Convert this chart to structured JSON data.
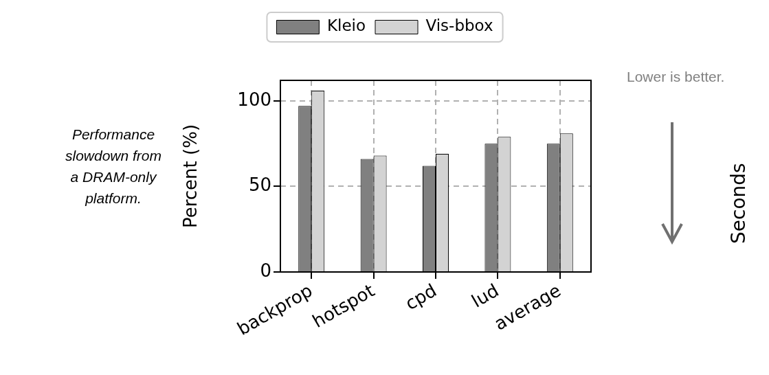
{
  "chart_data": {
    "type": "bar",
    "ylabel": "Percent (%)",
    "categories": [
      "backprop",
      "hotspot",
      "cpd",
      "lud",
      "average"
    ],
    "series": [
      {
        "name": "Kleio",
        "color": "#808080",
        "values": [
          97,
          66,
          62,
          75,
          75
        ]
      },
      {
        "name": "Vis-bbox",
        "color": "#d3d3d3",
        "values": [
          106,
          68,
          69,
          79,
          81
        ]
      }
    ],
    "ylim": [
      0,
      112
    ],
    "yticks": [
      0,
      50,
      100
    ],
    "grid": true,
    "legend": "top",
    "annotations": [
      "Performance slowdown from a DRAM-only platform.",
      "Lower is better.",
      "Seconds"
    ]
  }
}
